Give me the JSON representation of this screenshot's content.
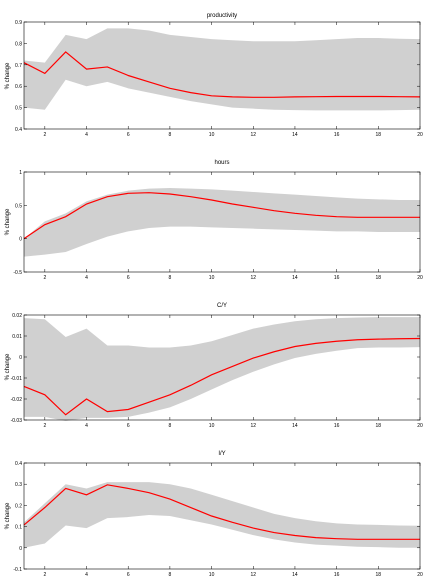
{
  "chart_data": [
    {
      "type": "area",
      "title": "productivity",
      "ylabel": "% change",
      "xlabel": "",
      "xlim": [
        1,
        20
      ],
      "ylim": [
        0.4,
        0.9
      ],
      "xticks": [
        "2",
        "4",
        "6",
        "8",
        "10",
        "12",
        "14",
        "16",
        "18",
        "20"
      ],
      "yticks": [
        "0.4",
        "0.5",
        "0.6",
        "0.7",
        "0.8",
        "0.9"
      ],
      "x": [
        1,
        2,
        3,
        4,
        5,
        6,
        7,
        8,
        9,
        10,
        11,
        12,
        13,
        14,
        15,
        16,
        17,
        18,
        19,
        20
      ],
      "series": [
        {
          "values": [
            0.71,
            0.66,
            0.76,
            0.68,
            0.69,
            0.65,
            0.62,
            0.59,
            0.57,
            0.555,
            0.55,
            0.548,
            0.548,
            0.55,
            0.551,
            0.552,
            0.552,
            0.552,
            0.551,
            0.55
          ]
        }
      ],
      "band_upper": [
        0.72,
        0.71,
        0.84,
        0.82,
        0.87,
        0.87,
        0.86,
        0.84,
        0.83,
        0.82,
        0.815,
        0.81,
        0.81,
        0.81,
        0.815,
        0.82,
        0.825,
        0.825,
        0.822,
        0.82
      ],
      "band_lower": [
        0.5,
        0.49,
        0.63,
        0.6,
        0.62,
        0.59,
        0.57,
        0.55,
        0.53,
        0.515,
        0.5,
        0.495,
        0.49,
        0.488,
        0.487,
        0.487,
        0.487,
        0.487,
        0.488,
        0.49
      ]
    },
    {
      "type": "area",
      "title": "hours",
      "ylabel": "% change",
      "xlabel": "",
      "xlim": [
        1,
        20
      ],
      "ylim": [
        -0.5,
        1
      ],
      "xticks": [
        "2",
        "4",
        "6",
        "8",
        "10",
        "12",
        "14",
        "16",
        "18",
        "20"
      ],
      "yticks": [
        "-0.5",
        "0",
        "0.5",
        "1"
      ],
      "x": [
        1,
        2,
        3,
        4,
        5,
        6,
        7,
        8,
        9,
        10,
        11,
        12,
        13,
        14,
        15,
        16,
        17,
        18,
        19,
        20
      ],
      "series": [
        {
          "values": [
            0.0,
            0.21,
            0.33,
            0.52,
            0.63,
            0.68,
            0.69,
            0.67,
            0.63,
            0.58,
            0.52,
            0.47,
            0.42,
            0.38,
            0.35,
            0.33,
            0.32,
            0.32,
            0.32,
            0.32
          ]
        }
      ],
      "band_upper": [
        0.0,
        0.26,
        0.38,
        0.56,
        0.66,
        0.72,
        0.75,
        0.76,
        0.75,
        0.74,
        0.72,
        0.7,
        0.68,
        0.66,
        0.64,
        0.62,
        0.6,
        0.59,
        0.58,
        0.58
      ],
      "band_lower": [
        -0.27,
        -0.24,
        -0.2,
        -0.08,
        0.03,
        0.11,
        0.16,
        0.18,
        0.18,
        0.17,
        0.16,
        0.15,
        0.14,
        0.13,
        0.12,
        0.11,
        0.11,
        0.1,
        0.1,
        0.1
      ]
    },
    {
      "type": "area",
      "title": "C/Y",
      "ylabel": "% change",
      "xlabel": "",
      "xlim": [
        1,
        20
      ],
      "ylim": [
        -0.03,
        0.02
      ],
      "xticks": [
        "2",
        "4",
        "6",
        "8",
        "10",
        "12",
        "14",
        "16",
        "18",
        "20"
      ],
      "yticks": [
        "-0.03",
        "-0.02",
        "-0.01",
        "0",
        "0.01",
        "0.02"
      ],
      "x": [
        1,
        2,
        3,
        4,
        5,
        6,
        7,
        8,
        9,
        10,
        11,
        12,
        13,
        14,
        15,
        16,
        17,
        18,
        19,
        20
      ],
      "series": [
        {
          "values": [
            -0.014,
            -0.018,
            -0.0275,
            -0.02,
            -0.026,
            -0.025,
            -0.0215,
            -0.018,
            -0.0135,
            -0.0085,
            -0.0045,
            -0.0005,
            0.0025,
            0.005,
            0.0065,
            0.0075,
            0.0082,
            0.0085,
            0.0087,
            0.0088
          ]
        }
      ],
      "band_upper": [
        0.0185,
        0.018,
        0.0095,
        0.0135,
        0.0055,
        0.0055,
        0.0045,
        0.0045,
        0.0055,
        0.0075,
        0.0105,
        0.0135,
        0.0155,
        0.017,
        0.018,
        0.0185,
        0.0188,
        0.019,
        0.019,
        0.019
      ],
      "band_lower": [
        -0.0285,
        -0.0285,
        -0.0305,
        -0.029,
        -0.029,
        -0.0285,
        -0.0265,
        -0.024,
        -0.02,
        -0.0155,
        -0.011,
        -0.007,
        -0.0035,
        -0.0005,
        0.0015,
        0.003,
        0.0042,
        0.0045,
        0.0045,
        0.0047
      ]
    },
    {
      "type": "area",
      "title": "I/Y",
      "ylabel": "% change",
      "xlabel": "",
      "xlim": [
        1,
        20
      ],
      "ylim": [
        -0.1,
        0.4
      ],
      "xticks": [
        "2",
        "4",
        "6",
        "8",
        "10",
        "12",
        "14",
        "16",
        "18",
        "20"
      ],
      "yticks": [
        "-0.1",
        "0",
        "0.1",
        "0.2",
        "0.3",
        "0.4"
      ],
      "x": [
        1,
        2,
        3,
        4,
        5,
        6,
        7,
        8,
        9,
        10,
        11,
        12,
        13,
        14,
        15,
        16,
        17,
        18,
        19,
        20
      ],
      "series": [
        {
          "values": [
            0.108,
            0.19,
            0.28,
            0.25,
            0.297,
            0.28,
            0.26,
            0.23,
            0.19,
            0.15,
            0.12,
            0.093,
            0.072,
            0.058,
            0.048,
            0.043,
            0.04,
            0.04,
            0.04,
            0.04
          ]
        }
      ],
      "band_upper": [
        0.12,
        0.21,
        0.3,
        0.28,
        0.31,
        0.31,
        0.31,
        0.3,
        0.28,
        0.25,
        0.22,
        0.19,
        0.16,
        0.14,
        0.125,
        0.115,
        0.11,
        0.108,
        0.105,
        0.104
      ],
      "band_lower": [
        0.0,
        0.02,
        0.105,
        0.093,
        0.14,
        0.145,
        0.155,
        0.15,
        0.13,
        0.11,
        0.085,
        0.06,
        0.04,
        0.025,
        0.015,
        0.01,
        0.005,
        0.003,
        0.0,
        0.0
      ]
    }
  ],
  "colors": {
    "band": "#d0d0d0",
    "line": "#ff0000",
    "axis": "#000000"
  }
}
